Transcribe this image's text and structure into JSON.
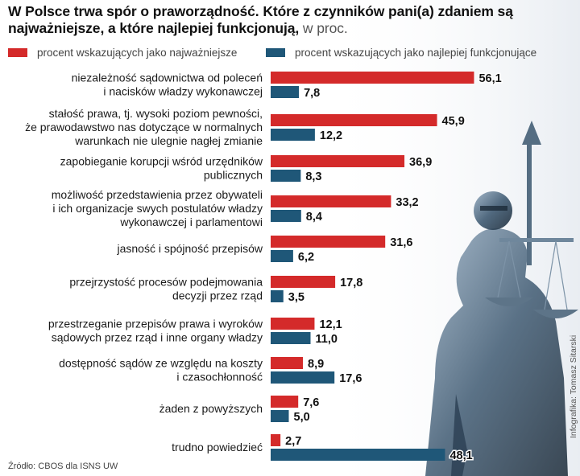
{
  "title": {
    "main": "W Polsce trwa spór o praworządność. Które z czynników pani(a) zdaniem są najważniejsze, a które najlepiej funkcjonują,",
    "unit": " w proc."
  },
  "source": "Źródło: CBOS dla ISNS UW",
  "credit": "Infografika: Tomasz Sitarski",
  "colors": {
    "important": "#d42a2a",
    "functioning": "#1f5778"
  },
  "chart_data": {
    "type": "bar",
    "orientation": "horizontal",
    "categories": [
      [
        "niezależność sądownictwa od poleceń",
        "i nacisków władzy wykonawczej"
      ],
      [
        "stałość prawa, tj. wysoki poziom pewności,",
        "że prawodawstwo nas dotyczące w normalnych",
        "warunkach nie ulegnie nagłej zmianie"
      ],
      [
        "zapobieganie korupcji wśród urzędników",
        "publicznych"
      ],
      [
        "możliwość przedstawienia przez obywateli",
        "i ich organizacje swych postulatów władzy",
        "wykonawczej i parlamentowi"
      ],
      [
        "jasność i spójność przepisów"
      ],
      [
        "przejrzystość procesów podejmowania",
        "decyzji przez rząd"
      ],
      [
        "przestrzeganie przepisów prawa i wyroków",
        "sądowych przez rząd i inne organy władzy"
      ],
      [
        "dostępność sądów ze względu na koszty",
        "i czasochłonność"
      ],
      [
        "żaden z powyższych"
      ],
      [
        "trudno powiedzieć"
      ]
    ],
    "series": [
      {
        "name": "procent wskazujących jako najważniejsze",
        "values": [
          56.1,
          45.9,
          36.9,
          33.2,
          31.6,
          17.8,
          12.1,
          8.9,
          7.6,
          2.7
        ],
        "labels": [
          "56,1",
          "45,9",
          "36,9",
          "33,2",
          "31,6",
          "17,8",
          "12,1",
          "8,9",
          "7,6",
          "2,7"
        ]
      },
      {
        "name": "procent wskazujących jako najlepiej funkcjonujące",
        "values": [
          7.8,
          12.2,
          8.3,
          8.4,
          6.2,
          3.5,
          11.0,
          17.6,
          5.0,
          48.1
        ],
        "labels": [
          "7,8",
          "12,2",
          "8,3",
          "8,4",
          "6,2",
          "3,5",
          "11,0",
          "17,6",
          "5,0",
          "48,1"
        ]
      }
    ]
  }
}
